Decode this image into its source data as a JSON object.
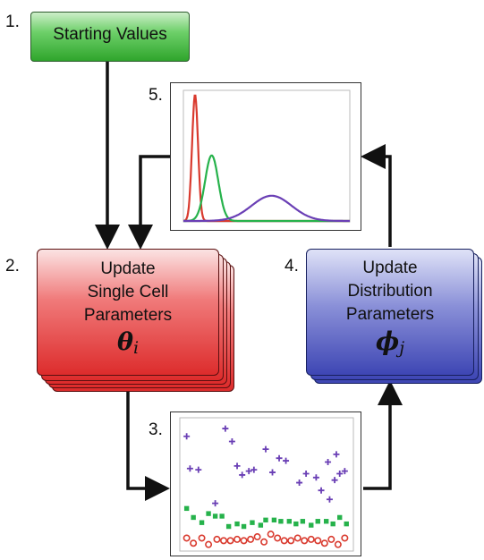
{
  "steps": {
    "s1": {
      "number": "1.",
      "label": "Starting Values"
    },
    "s2": {
      "number": "2.",
      "line1": "Update",
      "line2": "Single Cell",
      "line3": "Parameters",
      "symbol": "θ",
      "subscript": "i"
    },
    "s3": {
      "number": "3."
    },
    "s4": {
      "number": "4.",
      "line1": "Update",
      "line2": "Distribution",
      "line3": "Parameters",
      "symbol": "ϕ",
      "subscript": "j"
    },
    "s5": {
      "number": "5."
    }
  },
  "colors": {
    "red": "#d93a2e",
    "green": "#26b24b",
    "purple": "#6a3fb5",
    "arrow": "#111111"
  },
  "chart_data": [
    {
      "type": "line",
      "panel": "5",
      "title": "",
      "series": [
        {
          "color": "red",
          "peak_x": 0.07,
          "width": 0.018,
          "height": 1.0
        },
        {
          "color": "green",
          "peak_x": 0.17,
          "width": 0.04,
          "height": 0.52
        },
        {
          "color": "purple",
          "peak_x": 0.53,
          "width": 0.12,
          "height": 0.2
        }
      ]
    },
    {
      "type": "scatter",
      "panel": "3",
      "title": "",
      "series": [
        {
          "color": "purple",
          "marker": "plus",
          "points": [
            [
              0.03,
              0.87
            ],
            [
              0.26,
              0.93
            ],
            [
              0.05,
              0.62
            ],
            [
              0.1,
              0.61
            ],
            [
              0.3,
              0.83
            ],
            [
              0.33,
              0.64
            ],
            [
              0.36,
              0.57
            ],
            [
              0.4,
              0.6
            ],
            [
              0.43,
              0.61
            ],
            [
              0.54,
              0.59
            ],
            [
              0.58,
              0.7
            ],
            [
              0.62,
              0.68
            ],
            [
              0.7,
              0.51
            ],
            [
              0.74,
              0.58
            ],
            [
              0.8,
              0.55
            ],
            [
              0.83,
              0.45
            ],
            [
              0.87,
              0.67
            ],
            [
              0.91,
              0.53
            ],
            [
              0.94,
              0.58
            ],
            [
              0.97,
              0.6
            ],
            [
              0.2,
              0.35
            ],
            [
              0.5,
              0.77
            ],
            [
              0.88,
              0.38
            ],
            [
              0.92,
              0.73
            ]
          ]
        },
        {
          "color": "green",
          "marker": "square",
          "points": [
            [
              0.03,
              0.31
            ],
            [
              0.07,
              0.24
            ],
            [
              0.12,
              0.2
            ],
            [
              0.16,
              0.27
            ],
            [
              0.2,
              0.25
            ],
            [
              0.24,
              0.25
            ],
            [
              0.28,
              0.17
            ],
            [
              0.33,
              0.19
            ],
            [
              0.37,
              0.17
            ],
            [
              0.42,
              0.2
            ],
            [
              0.47,
              0.18
            ],
            [
              0.5,
              0.22
            ],
            [
              0.55,
              0.22
            ],
            [
              0.59,
              0.21
            ],
            [
              0.64,
              0.21
            ],
            [
              0.68,
              0.19
            ],
            [
              0.72,
              0.21
            ],
            [
              0.77,
              0.18
            ],
            [
              0.81,
              0.21
            ],
            [
              0.86,
              0.21
            ],
            [
              0.9,
              0.19
            ],
            [
              0.94,
              0.24
            ],
            [
              0.98,
              0.19
            ]
          ]
        },
        {
          "color": "red",
          "marker": "circle",
          "points": [
            [
              0.03,
              0.08
            ],
            [
              0.07,
              0.04
            ],
            [
              0.12,
              0.08
            ],
            [
              0.16,
              0.03
            ],
            [
              0.21,
              0.07
            ],
            [
              0.25,
              0.06
            ],
            [
              0.29,
              0.06
            ],
            [
              0.33,
              0.07
            ],
            [
              0.37,
              0.06
            ],
            [
              0.41,
              0.07
            ],
            [
              0.45,
              0.09
            ],
            [
              0.49,
              0.05
            ],
            [
              0.53,
              0.11
            ],
            [
              0.57,
              0.08
            ],
            [
              0.61,
              0.06
            ],
            [
              0.65,
              0.06
            ],
            [
              0.69,
              0.08
            ],
            [
              0.73,
              0.06
            ],
            [
              0.77,
              0.07
            ],
            [
              0.81,
              0.06
            ],
            [
              0.85,
              0.04
            ],
            [
              0.89,
              0.07
            ],
            [
              0.93,
              0.03
            ],
            [
              0.97,
              0.08
            ]
          ]
        }
      ]
    }
  ]
}
